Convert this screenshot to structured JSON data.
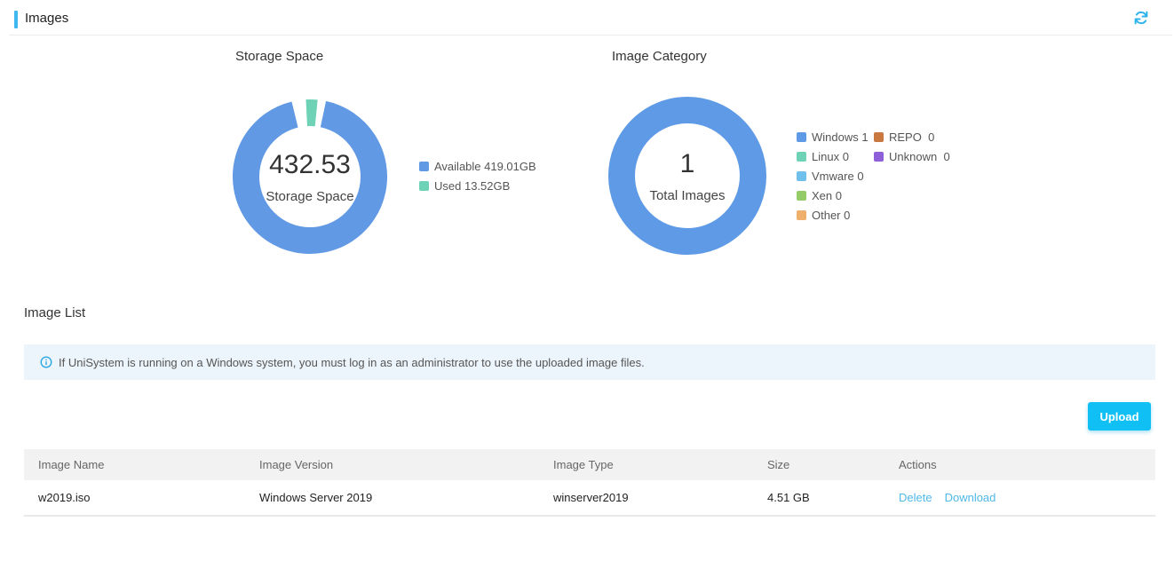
{
  "header": {
    "title": "Images",
    "refresh_icon": "refresh-icon"
  },
  "storage": {
    "title": "Storage Space",
    "center_value": "432.53",
    "center_label": "Storage Space",
    "legend": [
      {
        "label": "Available 419.01GB",
        "color": "#6199e5",
        "value": 419.01
      },
      {
        "label": "Used 13.52GB",
        "color": "#6ed3b6",
        "value": 13.52
      }
    ]
  },
  "category": {
    "title": "Image Category",
    "center_value": "1",
    "center_label": "Total Images",
    "legend": [
      {
        "label": "Windows",
        "count": "1",
        "color": "#5e9ae6"
      },
      {
        "label": "REPO",
        "count": "0",
        "color": "#c9783f"
      },
      {
        "label": "Linux",
        "count": "0",
        "color": "#6ed3b6"
      },
      {
        "label": "Unknown",
        "count": "0",
        "color": "#8d5fd9"
      },
      {
        "label": "Vmware",
        "count": "0",
        "color": "#6fc0ea"
      },
      {
        "label": "Xen",
        "count": "0",
        "color": "#94cc6a"
      },
      {
        "label": "Other",
        "count": "0",
        "color": "#efb06d"
      }
    ]
  },
  "image_list": {
    "title": "Image List",
    "notice": "If UniSystem is running on a Windows system, you must log in as an administrator to use the uploaded image files.",
    "upload_label": "Upload",
    "columns": [
      "Image Name",
      "Image Version",
      "Image Type",
      "Size",
      "Actions"
    ],
    "rows": [
      {
        "name": "w2019.iso",
        "version": "Windows Server 2019",
        "type": "winserver2019",
        "size": "4.51 GB",
        "actions": [
          "Delete",
          "Download"
        ]
      }
    ]
  }
}
